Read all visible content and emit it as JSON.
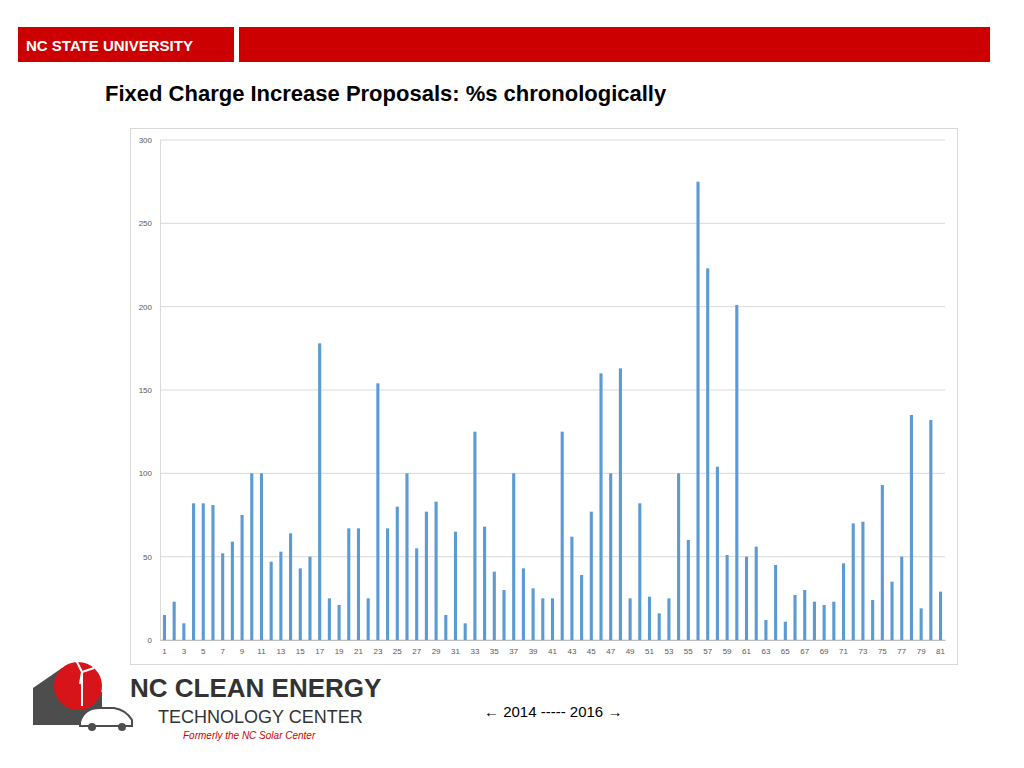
{
  "header": {
    "university": "NC STATE UNIVERSITY"
  },
  "logo": {
    "name": "NC CLEAN ENERGY",
    "subtitle": "TECHNOLOGY CENTER",
    "note": "Formerly the NC Solar Center"
  },
  "footer": "← 2014 ----- 2016 →",
  "chart_data": {
    "type": "bar",
    "title": "Fixed Charge Increase Proposals: %s chronologically",
    "categories": [
      1,
      null,
      3,
      null,
      5,
      null,
      7,
      null,
      9,
      null,
      11,
      null,
      13,
      null,
      15,
      null,
      17,
      null,
      19,
      null,
      21,
      null,
      23,
      null,
      25,
      null,
      27,
      null,
      29,
      null,
      31,
      null,
      33,
      null,
      35,
      null,
      37,
      null,
      39,
      null,
      41,
      null,
      43,
      null,
      45,
      null,
      47,
      null,
      49,
      null,
      51,
      null,
      53,
      null,
      55,
      null,
      57,
      null,
      59,
      null,
      61,
      null,
      63,
      null,
      65,
      null,
      67,
      null,
      69,
      null,
      71,
      null,
      73,
      null,
      75,
      null,
      77,
      null,
      79,
      null,
      81
    ],
    "values": [
      15,
      23,
      10,
      82,
      82,
      81,
      52,
      59,
      75,
      100,
      100,
      47,
      53,
      64,
      43,
      50,
      178,
      25,
      21,
      67,
      67,
      25,
      154,
      67,
      80,
      100,
      55,
      77,
      83,
      15,
      65,
      10,
      125,
      68,
      41,
      30,
      100,
      43,
      31,
      25,
      25,
      125,
      62,
      39,
      77,
      160,
      100,
      163,
      25,
      82,
      26,
      16,
      25,
      100,
      60,
      275,
      223,
      104,
      51,
      201,
      50,
      56,
      12,
      45,
      11,
      27,
      30,
      23,
      21,
      23,
      46,
      70,
      71,
      24,
      93,
      35,
      50,
      135,
      19,
      132,
      29
    ],
    "color": "#5b9bd5",
    "ylim": [
      0,
      300
    ],
    "yticks": [
      0,
      50,
      100,
      150,
      200,
      250,
      300
    ],
    "grid": true
  }
}
